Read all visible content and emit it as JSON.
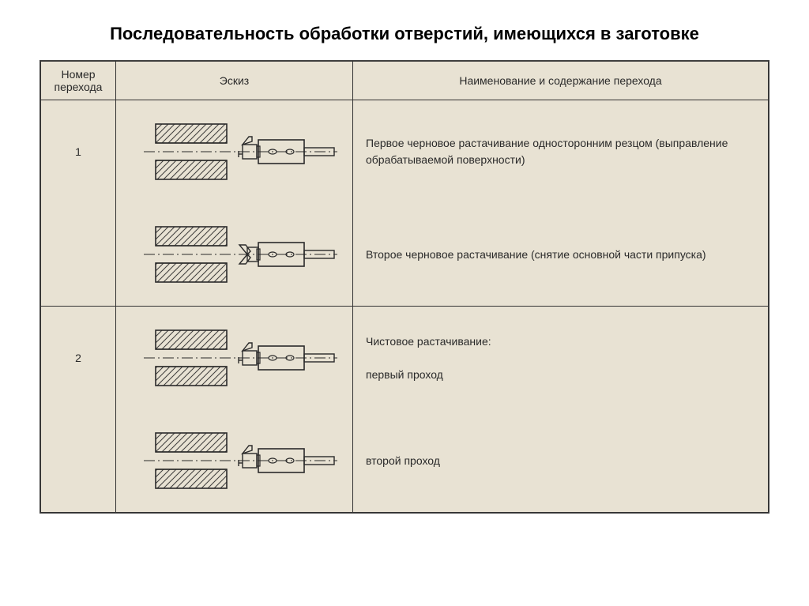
{
  "title": "Последовательность обработки отверстий, имеющихся в заготовке",
  "columns": [
    "Номер перехода",
    "Эскиз",
    "Наименование и содержание перехода"
  ],
  "rows": [
    {
      "num": "1",
      "desc": "Первое черновое растачивание односторонним резцом (выправление обрабатываемой поверхности)",
      "tool": "single"
    },
    {
      "num": "",
      "desc": "Второе черновое растачивание (снятие основной части припуска)",
      "tool": "double"
    },
    {
      "num": "2",
      "desc": "Чистовое растачивание:\nпервый проход",
      "tool": "single",
      "section_start": true
    },
    {
      "num": "",
      "desc": "второй проход",
      "tool": "single"
    }
  ],
  "colors": {
    "bg": "#e8e2d3",
    "stroke": "#2a2a2a",
    "hatch": "#2a2a2a"
  }
}
